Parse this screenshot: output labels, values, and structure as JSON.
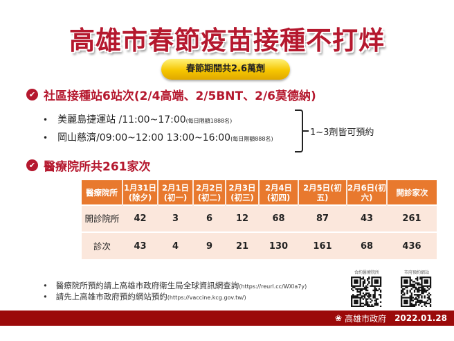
{
  "title": "高雄市春節疫苗接種不打烊",
  "badge": "春節期間共2.6萬劑",
  "section1": {
    "title": "社區接種站6站次(2/4高端、2/5BNT、2/6莫德納)",
    "items": [
      {
        "text": "美麗島捷運站 /11:00~17:00",
        "note": "(每日限額1888名)"
      },
      {
        "text": "岡山慈濟/09:00~12:00 13:00~16:00",
        "note": "(每日限額888名)"
      }
    ],
    "brace_note": "1~3劑皆可預約"
  },
  "section2": {
    "title": "醫療院所共261家次"
  },
  "table": {
    "headers": [
      "醫療院所",
      "1月31日(除夕)",
      "2月1日(初一)",
      "2月2日(初二)",
      "2月3日(初三)",
      "2月4日(初四)",
      "2月5日(初五)",
      "2月6日(初六)",
      "開診家次"
    ],
    "rows": [
      {
        "label": "開診院所",
        "values": [
          "42",
          "3",
          "6",
          "12",
          "68",
          "87",
          "43",
          "261"
        ]
      },
      {
        "label": "診次",
        "values": [
          "43",
          "4",
          "9",
          "21",
          "130",
          "161",
          "68",
          "436"
        ]
      }
    ]
  },
  "notes": [
    {
      "text": "醫療院所預約請上高雄市政府衛生局全球資訊網查詢",
      "url": "(https://reurl.cc/WXla7y)"
    },
    {
      "text": "請先上高雄市政府預約網站預約",
      "url": "(https://vaccine.kcg.gov.tw/)"
    }
  ],
  "qr": [
    {
      "label": "合約醫療院所"
    },
    {
      "label": "市府預約網站"
    }
  ],
  "footer": {
    "org": "高雄市政府",
    "date": "2022.01.28"
  },
  "colors": {
    "red": "#b5182e",
    "orange": "#e8792e",
    "table_bg": "#fbe7dc",
    "footer": "#9b0a0a",
    "pill": "#f6c600"
  }
}
